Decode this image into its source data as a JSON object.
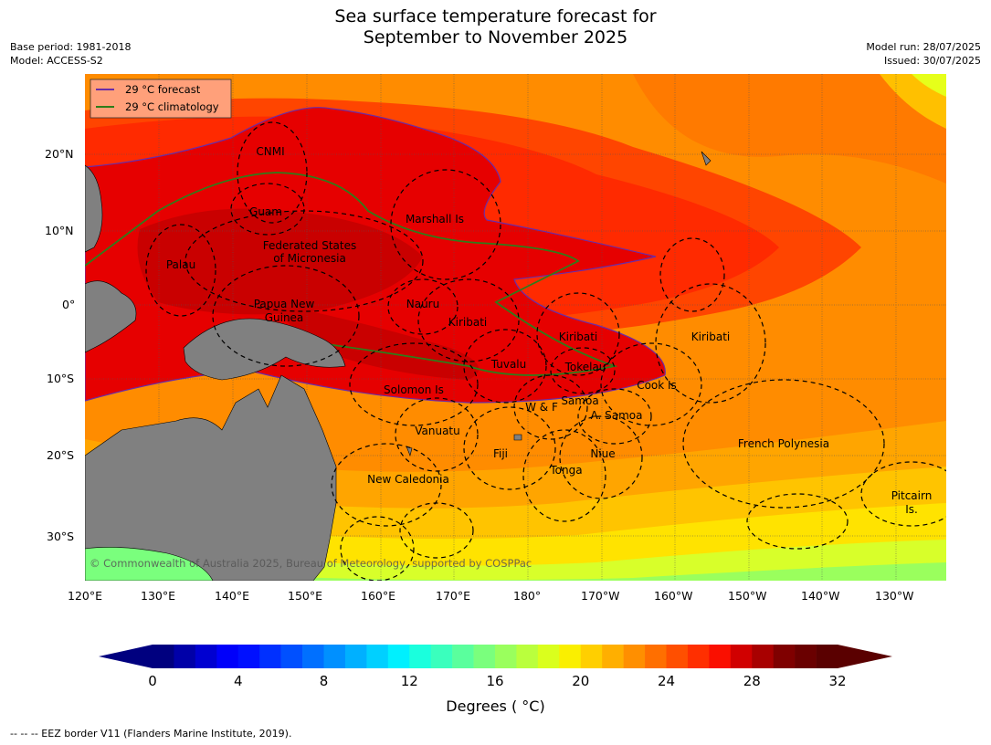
{
  "title": {
    "line1": "Sea surface temperature forecast for",
    "line2": "September to November 2025"
  },
  "meta": {
    "base_period": "Base period: 1981-2018",
    "model": "Model: ACCESS-S2",
    "model_run": "Model run: 28/07/2025",
    "issued": "Issued: 30/07/2025"
  },
  "legend": {
    "forecast": "29 °C  forecast",
    "climatology": "29 °C  climatology",
    "forecast_color": "#6a2ca8",
    "climatology_color": "#2e7d1a"
  },
  "axes": {
    "lon_ticks": [
      "120°E",
      "130°E",
      "140°E",
      "150°E",
      "160°E",
      "170°E",
      "180°",
      "170°W",
      "160°W",
      "150°W",
      "140°W",
      "130°W"
    ],
    "lat_ticks": [
      "20°N",
      "10°N",
      "0°",
      "10°S",
      "20°S",
      "30°S"
    ]
  },
  "regions": [
    "CNMI",
    "Guam",
    "Marshall Is",
    "Federated States",
    "of Micronesia",
    "Palau",
    "Papua New",
    "Guinea",
    "Nauru",
    "Kiribati",
    "Kiribati",
    "Kiribati",
    "Tuvalu",
    "Tokelau",
    "Solomon Is",
    "W & F",
    "Samoa",
    "A. Samoa",
    "Cook Is",
    "Vanuatu",
    "Fiji",
    "Niue",
    "Tonga",
    "New Caledonia",
    "French Polynesia",
    "Pitcairn",
    "Is."
  ],
  "copyright": "© Commonwealth of Australia 2025, Bureau of Meteorology, supported by COSPPac",
  "colorbar": {
    "ticks": [
      "0",
      "4",
      "8",
      "12",
      "16",
      "20",
      "24",
      "28",
      "32"
    ],
    "label": "Degrees ( °C)",
    "min": 0,
    "max": 32,
    "step": 1,
    "colors": [
      "#00007f",
      "#0000a8",
      "#0000d1",
      "#0000fa",
      "#0010ff",
      "#0030ff",
      "#0050ff",
      "#0070ff",
      "#0090ff",
      "#00b0ff",
      "#00d0ff",
      "#00f0fe",
      "#1affdd",
      "#3affbd",
      "#5aff9d",
      "#7aff7d",
      "#9aff5d",
      "#baff3d",
      "#daff1d",
      "#faef00",
      "#ffcf00",
      "#ffaf00",
      "#ff8f00",
      "#ff6f00",
      "#ff4f00",
      "#ff2f00",
      "#fa0f00",
      "#d10000",
      "#a80000",
      "#7f0000",
      "#6a0000",
      "#5a0000"
    ]
  },
  "footnote": "--  --  -- EEZ border V11 (Flanders Marine Institute, 2019)."
}
